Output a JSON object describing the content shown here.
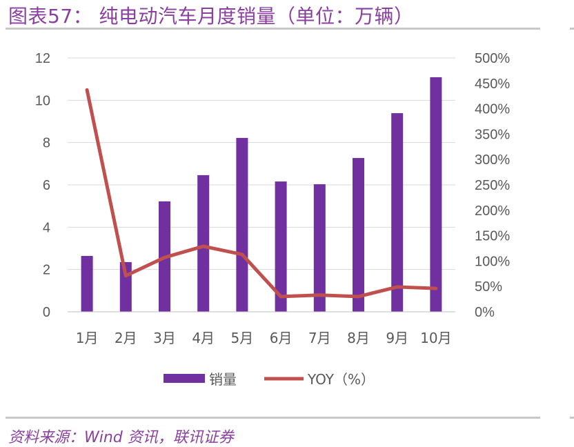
{
  "title": "图表57：  纯电动汽车月度销量（单位：万辆）",
  "source": "资料来源：Wind 资讯，联讯证券",
  "colors": {
    "bar": "#7030a0",
    "line": "#c0504d",
    "title": "#8a3fa0",
    "grid": "#d9d9d9"
  },
  "chart_data": {
    "type": "bar+line",
    "title": "纯电动汽车月度销量（单位：万辆）",
    "categories": [
      "1月",
      "2月",
      "3月",
      "4月",
      "5月",
      "6月",
      "7月",
      "8月",
      "9月",
      "10月"
    ],
    "series": [
      {
        "name": "销量",
        "type": "bar",
        "axis": "left",
        "values": [
          2.64,
          2.35,
          5.22,
          6.46,
          8.22,
          6.16,
          6.03,
          7.27,
          9.39,
          11.09
        ]
      },
      {
        "name": "YOY（%）",
        "type": "line",
        "axis": "right",
        "values": [
          437,
          71,
          107,
          129,
          113,
          30,
          33,
          30,
          49,
          46
        ]
      }
    ],
    "left_axis": {
      "range": [
        0,
        12
      ],
      "ticks": [
        "0",
        "2",
        "4",
        "6",
        "8",
        "10",
        "12"
      ]
    },
    "right_axis": {
      "range": [
        0,
        500
      ],
      "ticks": [
        "0%",
        "50%",
        "100%",
        "150%",
        "200%",
        "250%",
        "300%",
        "350%",
        "400%",
        "450%",
        "500%"
      ]
    },
    "grid": true,
    "legend": "bottom"
  }
}
